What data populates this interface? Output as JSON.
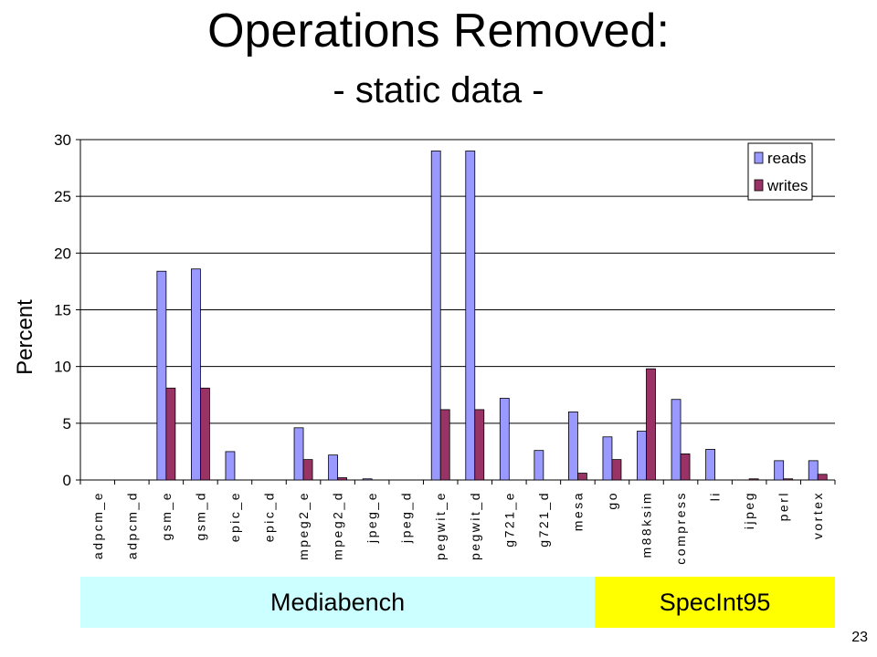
{
  "slide": {
    "title": "Operations Removed:",
    "subtitle": "- static data -",
    "page_number": "23"
  },
  "colors": {
    "reads": "#9999ff",
    "writes": "#993366",
    "mediabench_band": "#ccffff",
    "specint_band": "#ffff00",
    "gridline": "#000000"
  },
  "chart_data": {
    "type": "bar",
    "ylabel": "Percent",
    "xlabel": "",
    "ylim": [
      0,
      30
    ],
    "yticks": [
      0,
      5,
      10,
      15,
      20,
      25,
      30
    ],
    "grid": true,
    "legend_position": "top-right",
    "categories": [
      "adpcm_e",
      "adpcm_d",
      "gsm_e",
      "gsm_d",
      "epic_e",
      "epic_d",
      "mpeg2_e",
      "mpeg2_d",
      "jpeg_e",
      "jpeg_d",
      "pegwit_e",
      "pegwit_d",
      "g721_e",
      "g721_d",
      "mesa",
      "go",
      "m88ksim",
      "compress",
      "li",
      "ijpeg",
      "perl",
      "vortex"
    ],
    "series": [
      {
        "name": "reads",
        "values": [
          0,
          0,
          18.4,
          18.6,
          2.5,
          0,
          4.6,
          2.2,
          0.1,
          0,
          29.0,
          29.0,
          7.2,
          2.6,
          6.0,
          3.8,
          4.3,
          7.1,
          2.7,
          0,
          1.7,
          1.7
        ]
      },
      {
        "name": "writes",
        "values": [
          0,
          0,
          8.1,
          8.1,
          0,
          0,
          1.8,
          0.2,
          0,
          0,
          6.2,
          6.2,
          0,
          0,
          0.6,
          1.8,
          9.8,
          2.3,
          0,
          0.1,
          0.1,
          0.5
        ]
      }
    ],
    "groups": [
      {
        "name": "Mediabench",
        "count": 15
      },
      {
        "name": "SpecInt95",
        "count": 7
      }
    ]
  }
}
